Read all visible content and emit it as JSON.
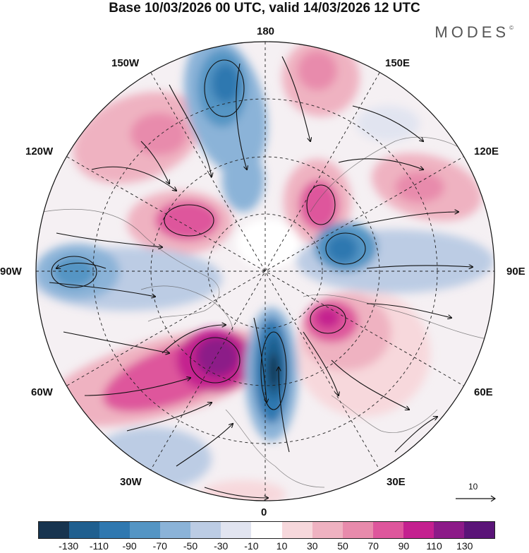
{
  "title": "Base 10/03/2026 00 UTC, valid 14/03/2026 12 UTC",
  "brand": {
    "name": "MODES",
    "mark": "©"
  },
  "map": {
    "projection": "north-polar-stereographic",
    "longitude_labels": {
      "top": "180",
      "bottom": "0",
      "left": "90W",
      "right": "90E",
      "upper_left": "150W",
      "upper_right": "150E",
      "mid_left_high": "120W",
      "mid_right_high": "120E",
      "mid_left_low": "60W",
      "mid_right_low": "60E",
      "lower_left": "30W",
      "lower_right": "30E"
    },
    "reference_vector": "10"
  },
  "colorbar": {
    "colors": [
      "#17344f",
      "#1f5f8f",
      "#2f78b0",
      "#5495c4",
      "#8bb3d8",
      "#bccce4",
      "#e1e4f0",
      "#ffffff",
      "#f7d8dc",
      "#efb2c1",
      "#e88bac",
      "#de569c",
      "#c4208f",
      "#8c1a88",
      "#5a1478"
    ],
    "ticks": [
      "-130",
      "-110",
      "-90",
      "-70",
      "-50",
      "-30",
      "-10",
      "10",
      "30",
      "50",
      "70",
      "90",
      "110",
      "130"
    ]
  }
}
